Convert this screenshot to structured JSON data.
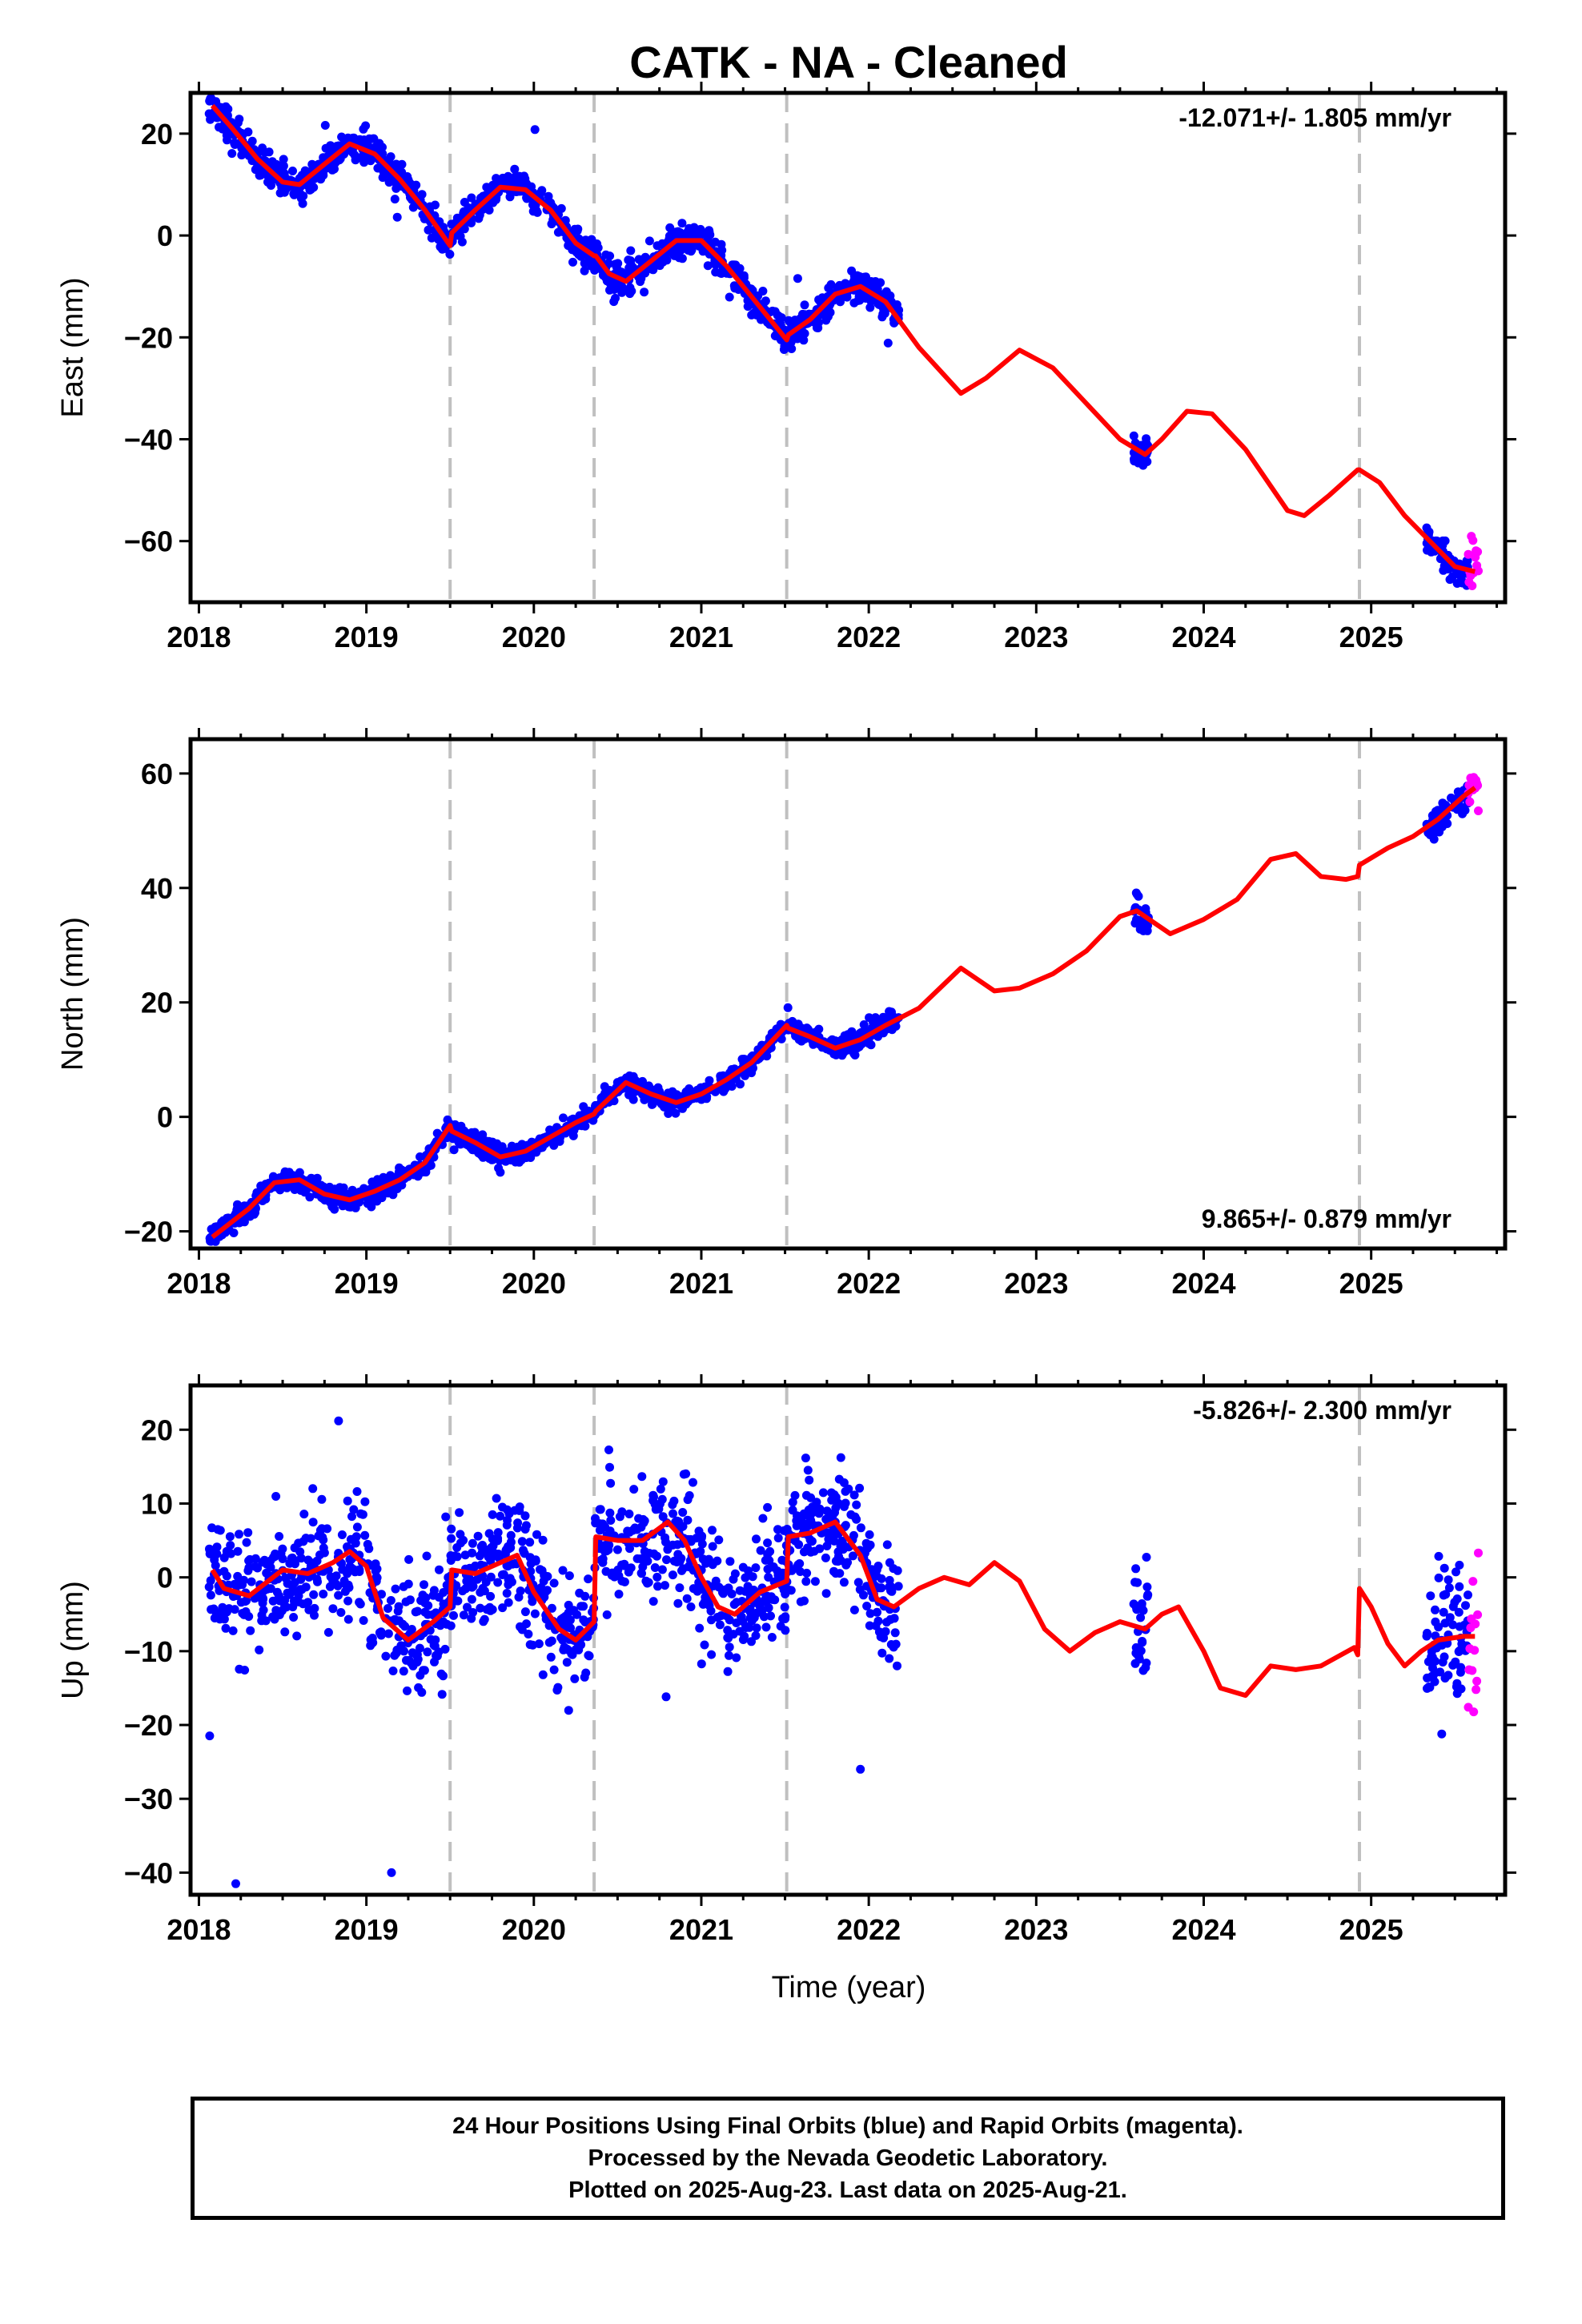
{
  "figure": {
    "title": "CATK  - NA - Cleaned",
    "xlabel": "Time (year)",
    "footer": [
      "24 Hour Positions Using Final Orbits (blue) and Rapid Orbits (magenta).",
      "Processed by the Nevada Geodetic Laboratory.",
      "Plotted on 2025-Aug-23. Last data on 2025-Aug-21."
    ],
    "colors": {
      "final_orbits": "#0000ff",
      "rapid_orbits": "#ff00ff",
      "model_fit": "#ff0000",
      "event_lines": "#c0c0c0"
    }
  },
  "chart_data": [
    {
      "type": "scatter",
      "panel": "east",
      "ylabel": "East (mm)",
      "rate_text": "-12.071+/- 1.805 mm/yr",
      "xlim": [
        2017.95,
        2025.8
      ],
      "ylim": [
        -72,
        28
      ],
      "xticks": [
        2018,
        2019,
        2020,
        2021,
        2022,
        2023,
        2024,
        2025
      ],
      "yticks": [
        20,
        0,
        -20,
        -40,
        -60
      ],
      "ytick_labels": [
        "20",
        "0",
        "−20",
        "−40",
        "−60"
      ],
      "event_lines": [
        2019.5,
        2020.36,
        2021.51,
        2024.93
      ],
      "fit": {
        "x": [
          2018.08,
          2018.2,
          2018.35,
          2018.5,
          2018.6,
          2018.75,
          2018.9,
          2019.05,
          2019.2,
          2019.35,
          2019.5,
          2019.51,
          2019.65,
          2019.8,
          2019.95,
          2020.1,
          2020.25,
          2020.36,
          2020.37,
          2020.45,
          2020.55,
          2020.7,
          2020.85,
          2021.0,
          2021.15,
          2021.3,
          2021.51,
          2021.52,
          2021.65,
          2021.8,
          2021.95,
          2022.1,
          2022.3,
          2022.55,
          2022.7,
          2022.9,
          2023.1,
          2023.3,
          2023.5,
          2023.65,
          2023.75,
          2023.9,
          2024.05,
          2024.25,
          2024.5,
          2024.6,
          2024.75,
          2024.92,
          2024.93,
          2025.05,
          2025.2,
          2025.35,
          2025.5,
          2025.62
        ],
        "y": [
          25.5,
          21,
          15,
          10.5,
          10,
          14,
          18,
          16,
          11,
          5,
          -2,
          0.5,
          5,
          9.5,
          9,
          5,
          -1.5,
          -4,
          -4,
          -7.5,
          -9,
          -5,
          -1,
          -1,
          -6,
          -12,
          -20.5,
          -19.5,
          -16.5,
          -11.5,
          -10,
          -13,
          -22,
          -31,
          -28,
          -22.5,
          -26,
          -33,
          -40,
          -43,
          -40,
          -34.5,
          -35,
          -42,
          -54,
          -55,
          -51,
          -46,
          -46,
          -48.5,
          -55,
          -60,
          -65,
          -66
        ]
      },
      "final_segments": [
        {
          "x0": 2018.06,
          "x1": 2022.18,
          "n": 1150,
          "noise": 1.5,
          "outlier_rate": 0.01,
          "outlier_amp": 5
        },
        {
          "x0": 2023.58,
          "x1": 2023.67,
          "n": 25,
          "noise": 1.8,
          "outlier_rate": 0.0,
          "outlier_amp": 0
        },
        {
          "x0": 2025.33,
          "x1": 2025.58,
          "n": 75,
          "noise": 1.5,
          "outlier_rate": 0.0,
          "outlier_amp": 0
        }
      ],
      "rapid_segment": {
        "x0": 2025.58,
        "x1": 2025.64,
        "n": 14,
        "noise": 2.5
      }
    },
    {
      "type": "scatter",
      "panel": "north",
      "ylabel": "North (mm)",
      "rate_text": "9.865+/- 0.879 mm/yr",
      "xlim": [
        2017.95,
        2025.8
      ],
      "ylim": [
        -23,
        66
      ],
      "xticks": [
        2018,
        2019,
        2020,
        2021,
        2022,
        2023,
        2024,
        2025
      ],
      "yticks": [
        60,
        40,
        20,
        0,
        -20
      ],
      "ytick_labels": [
        "60",
        "40",
        "20",
        "0",
        "−20"
      ],
      "event_lines": [
        2019.5,
        2020.36,
        2021.51,
        2024.93
      ],
      "fit": {
        "x": [
          2018.08,
          2018.3,
          2018.45,
          2018.6,
          2018.75,
          2018.9,
          2019.05,
          2019.2,
          2019.35,
          2019.5,
          2019.51,
          2019.65,
          2019.8,
          2019.95,
          2020.1,
          2020.25,
          2020.36,
          2020.37,
          2020.55,
          2020.7,
          2020.85,
          2021.0,
          2021.15,
          2021.3,
          2021.51,
          2021.52,
          2021.65,
          2021.8,
          2021.95,
          2022.1,
          2022.3,
          2022.55,
          2022.75,
          2022.9,
          2023.1,
          2023.3,
          2023.5,
          2023.6,
          2023.8,
          2024.0,
          2024.2,
          2024.4,
          2024.55,
          2024.7,
          2024.85,
          2024.92,
          2024.93,
          2025.1,
          2025.25,
          2025.4,
          2025.55,
          2025.62
        ],
        "y": [
          -21,
          -16,
          -11.5,
          -11,
          -13.5,
          -14.5,
          -13,
          -11,
          -8,
          -1.5,
          -2.5,
          -4.5,
          -7,
          -6,
          -3.5,
          -1,
          0.5,
          1,
          6,
          4,
          2.5,
          4,
          6.5,
          9.5,
          16,
          15.5,
          14,
          12,
          13.5,
          16,
          19,
          26,
          22,
          22.5,
          25,
          29,
          35,
          36,
          32,
          34.5,
          38,
          45,
          46,
          42,
          41.5,
          42,
          44,
          47,
          49,
          52,
          56,
          57.5
        ]
      },
      "final_segments": [
        {
          "x0": 2018.06,
          "x1": 2022.18,
          "n": 1150,
          "noise": 0.9,
          "outlier_rate": 0.0,
          "outlier_amp": 0
        },
        {
          "x0": 2023.58,
          "x1": 2023.67,
          "n": 25,
          "noise": 1.8,
          "outlier_rate": 0.0,
          "outlier_amp": 0
        },
        {
          "x0": 2025.33,
          "x1": 2025.58,
          "n": 75,
          "noise": 1.2,
          "outlier_rate": 0.0,
          "outlier_amp": 0
        }
      ],
      "rapid_segment": {
        "x0": 2025.58,
        "x1": 2025.64,
        "n": 14,
        "noise": 2.8
      }
    },
    {
      "type": "scatter",
      "panel": "up",
      "ylabel": "Up (mm)",
      "xlabel": "Time (year)",
      "rate_text": "-5.826+/- 2.300 mm/yr",
      "xlim": [
        2017.95,
        2025.8
      ],
      "ylim": [
        -43,
        26
      ],
      "xticks": [
        2018,
        2019,
        2020,
        2021,
        2022,
        2023,
        2024,
        2025
      ],
      "yticks": [
        20,
        10,
        0,
        -10,
        -20,
        -30,
        -40
      ],
      "ytick_labels": [
        "20",
        "10",
        "0",
        "−10",
        "−20",
        "−30",
        "−40"
      ],
      "event_lines": [
        2019.5,
        2020.36,
        2021.51,
        2024.93
      ],
      "fit": {
        "x": [
          2018.08,
          2018.15,
          2018.3,
          2018.5,
          2018.65,
          2018.8,
          2018.9,
          2019.0,
          2019.1,
          2019.25,
          2019.4,
          2019.5,
          2019.51,
          2019.65,
          2019.8,
          2019.9,
          2020.0,
          2020.15,
          2020.25,
          2020.36,
          2020.37,
          2020.5,
          2020.65,
          2020.8,
          2020.9,
          2021.0,
          2021.1,
          2021.2,
          2021.35,
          2021.51,
          2021.52,
          2021.65,
          2021.8,
          2021.95,
          2022.05,
          2022.15,
          2022.3,
          2022.45,
          2022.6,
          2022.75,
          2022.9,
          2023.05,
          2023.2,
          2023.35,
          2023.5,
          2023.65,
          2023.75,
          2023.85,
          2024.0,
          2024.1,
          2024.25,
          2024.4,
          2024.55,
          2024.7,
          2024.9,
          2024.92,
          2024.93,
          2025.0,
          2025.1,
          2025.2,
          2025.3,
          2025.4,
          2025.55,
          2025.62
        ],
        "y": [
          1,
          -1.5,
          -2.5,
          1,
          0.5,
          2,
          3.5,
          1.5,
          -5.5,
          -8.5,
          -6,
          -4,
          1,
          0.5,
          2,
          3,
          -2,
          -7,
          -8.5,
          -6,
          5.5,
          5,
          5,
          7.5,
          5,
          0,
          -4,
          -5,
          -2,
          -0.5,
          5.5,
          6,
          7.5,
          3,
          -3,
          -4,
          -1.5,
          0,
          -1,
          2,
          -0.5,
          -7,
          -10,
          -7.5,
          -6,
          -7,
          -5,
          -4,
          -10,
          -15,
          -16,
          -12,
          -12.5,
          -12,
          -9.5,
          -10.5,
          -1.5,
          -4,
          -9,
          -12,
          -10,
          -8.5,
          -8,
          -8
        ]
      },
      "final_segments": [
        {
          "x0": 2018.06,
          "x1": 2022.18,
          "n": 1150,
          "noise": 4.0,
          "outlier_rate": 0.02,
          "outlier_amp": 14
        },
        {
          "x0": 2023.58,
          "x1": 2023.67,
          "n": 28,
          "noise": 6.0,
          "outlier_rate": 0.0,
          "outlier_amp": 0
        },
        {
          "x0": 2025.33,
          "x1": 2025.58,
          "n": 75,
          "noise": 5.0,
          "outlier_rate": 0.0,
          "outlier_amp": 0
        }
      ],
      "rapid_segment": {
        "x0": 2025.58,
        "x1": 2025.64,
        "n": 14,
        "noise": 6.0
      },
      "outliers": [
        [
          2018.22,
          -41.5
        ],
        [
          2019.15,
          -40
        ],
        [
          2021.95,
          -26
        ]
      ]
    }
  ]
}
